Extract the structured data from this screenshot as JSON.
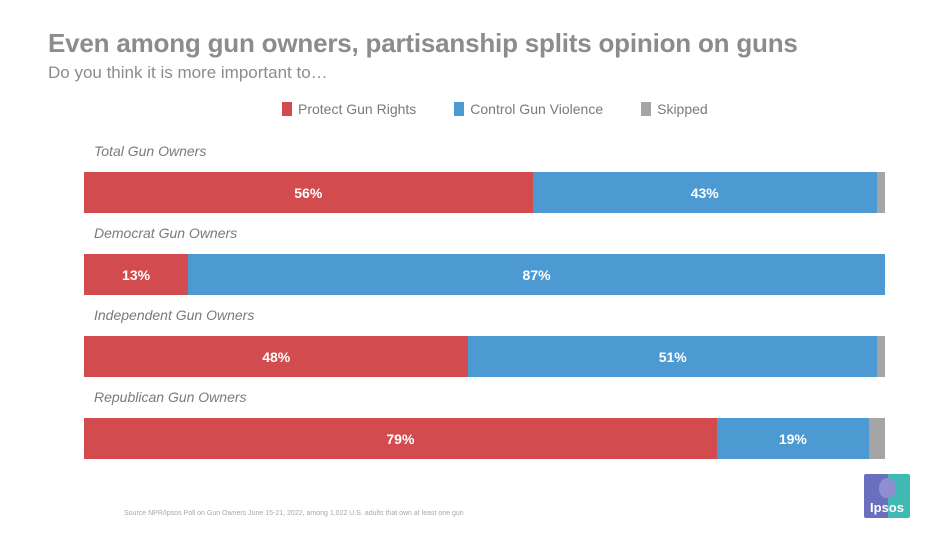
{
  "header": {
    "title": "Even among gun owners, partisanship splits opinion on guns",
    "subtitle": "Do you think it is more important to…"
  },
  "footer": {
    "source": "Source NPR/Ipsos Poll on Gun Owners June 15-21, 2022, among 1,022 U.S. adults that own at least one gun",
    "logo_text": "Ipsos"
  },
  "chart_data": {
    "type": "bar",
    "orientation": "horizontal",
    "stacked": true,
    "title": "Even among gun owners, partisanship splits opinion on guns",
    "subtitle": "Do you think it is more important to…",
    "xlabel": "",
    "ylabel": "",
    "xlim": [
      0,
      100
    ],
    "grid": false,
    "legend_position": "top-center",
    "categories": [
      "Total Gun Owners",
      "Democrat Gun Owners",
      "Independent Gun Owners",
      "Republican Gun Owners"
    ],
    "series": [
      {
        "name": "Protect Gun Rights",
        "color": "#d24b4e",
        "values": [
          56,
          13,
          48,
          79
        ],
        "labels": [
          "56%",
          "13%",
          "48%",
          "79%"
        ]
      },
      {
        "name": "Control Gun Violence",
        "color": "#4d9ad3",
        "values": [
          43,
          87,
          51,
          19
        ],
        "labels": [
          "43%",
          "87%",
          "51%",
          "19%"
        ]
      },
      {
        "name": "Skipped",
        "color": "#a5a5a5",
        "values": [
          1,
          0,
          1,
          2
        ],
        "labels": [
          "",
          "",
          "",
          ""
        ]
      }
    ]
  }
}
